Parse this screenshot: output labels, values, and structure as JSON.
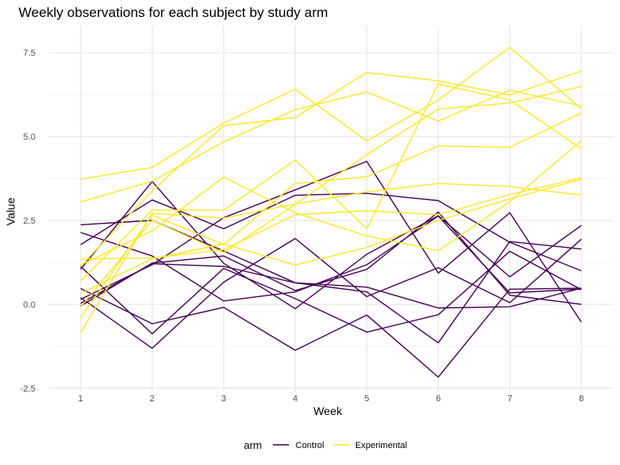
{
  "chart_data": {
    "type": "line",
    "title": "Weekly observations for each subject by study arm",
    "xlabel": "Week",
    "ylabel": "Value",
    "x": [
      1,
      2,
      3,
      4,
      5,
      6,
      7,
      8
    ],
    "xlim": [
      0.55,
      8.45
    ],
    "ylim": [
      -2.6,
      8.3
    ],
    "yticks": [
      -2.5,
      0.0,
      2.5,
      5.0,
      7.5
    ],
    "ytick_labels": [
      "-2.5",
      "0.0",
      "2.5",
      "5.0",
      "7.5"
    ],
    "xtick_labels": [
      "1",
      "2",
      "3",
      "4",
      "5",
      "6",
      "7",
      "8"
    ],
    "grid": true,
    "legend": {
      "title": "arm",
      "position": "bottom",
      "entries": [
        {
          "label": "Control",
          "color": "#440154"
        },
        {
          "label": "Experimental",
          "color": "#FDE725"
        }
      ]
    },
    "series": [
      {
        "group": "Control",
        "color": "#440154",
        "values": [
          0.2,
          -1.31,
          0.66,
          1.96,
          0.23,
          1.09,
          0.05,
          1.94
        ]
      },
      {
        "group": "Control",
        "color": "#440154",
        "values": [
          1.13,
          -0.88,
          1.07,
          0.17,
          -0.83,
          -0.31,
          1.58,
          0.44
        ]
      },
      {
        "group": "Control",
        "color": "#440154",
        "values": [
          2.14,
          1.44,
          0.1,
          0.37,
          1.18,
          2.63,
          0.34,
          0.45
        ]
      },
      {
        "group": "Control",
        "color": "#440154",
        "values": [
          1.04,
          3.66,
          1.22,
          -0.13,
          1.49,
          2.64,
          0.82,
          2.35
        ]
      },
      {
        "group": "Control",
        "color": "#440154",
        "values": [
          0.47,
          -0.58,
          -0.09,
          -1.37,
          -0.32,
          -2.17,
          0.45,
          0.48
        ]
      },
      {
        "group": "Control",
        "color": "#440154",
        "values": [
          2.37,
          2.5,
          1.59,
          0.64,
          0.51,
          -0.11,
          -0.07,
          0.48
        ]
      },
      {
        "group": "Control",
        "color": "#440154",
        "values": [
          0.03,
          1.21,
          1.13,
          0.64,
          0.37,
          -1.15,
          1.87,
          1.65
        ]
      },
      {
        "group": "Control",
        "color": "#440154",
        "values": [
          -0.05,
          1.23,
          1.44,
          0.41,
          1.04,
          2.75,
          0.27,
          0.0
        ]
      },
      {
        "group": "Control",
        "color": "#440154",
        "values": [
          0.15,
          1.18,
          2.58,
          3.41,
          4.26,
          0.93,
          2.73,
          -0.53
        ]
      },
      {
        "group": "Control",
        "color": "#440154",
        "values": [
          1.78,
          3.11,
          2.25,
          3.25,
          3.31,
          3.09,
          1.85,
          1.0
        ]
      },
      {
        "group": "Experimental",
        "color": "#FDE725",
        "values": [
          3.05,
          3.67,
          4.84,
          5.8,
          6.33,
          5.46,
          6.38,
          5.91
        ]
      },
      {
        "group": "Experimental",
        "color": "#FDE725",
        "values": [
          3.73,
          4.08,
          5.4,
          6.41,
          4.87,
          6.09,
          7.66,
          5.83
        ]
      },
      {
        "group": "Experimental",
        "color": "#FDE725",
        "values": [
          0.7,
          2.81,
          2.81,
          4.3,
          2.25,
          6.57,
          6.09,
          4.64
        ]
      },
      {
        "group": "Experimental",
        "color": "#FDE725",
        "values": [
          -0.4,
          2.66,
          1.78,
          3.6,
          3.8,
          4.72,
          4.68,
          5.7
        ]
      },
      {
        "group": "Experimental",
        "color": "#FDE725",
        "values": [
          1.14,
          3.38,
          5.32,
          5.57,
          6.91,
          6.66,
          6.24,
          6.95
        ]
      },
      {
        "group": "Experimental",
        "color": "#FDE725",
        "values": [
          -0.08,
          2.5,
          1.54,
          2.98,
          4.46,
          5.82,
          6.0,
          6.49
        ]
      },
      {
        "group": "Experimental",
        "color": "#FDE725",
        "values": [
          1.17,
          2.19,
          3.79,
          2.73,
          2.04,
          1.6,
          3.06,
          4.88
        ]
      },
      {
        "group": "Experimental",
        "color": "#FDE725",
        "values": [
          1.35,
          1.38,
          1.63,
          2.67,
          2.79,
          2.67,
          3.27,
          3.77
        ]
      },
      {
        "group": "Experimental",
        "color": "#FDE725",
        "values": [
          0.33,
          1.35,
          1.8,
          1.17,
          1.69,
          2.5,
          3.14,
          3.73
        ]
      },
      {
        "group": "Experimental",
        "color": "#FDE725",
        "values": [
          -0.84,
          2.71,
          2.57,
          2.99,
          3.35,
          3.6,
          3.51,
          3.26
        ]
      }
    ]
  }
}
